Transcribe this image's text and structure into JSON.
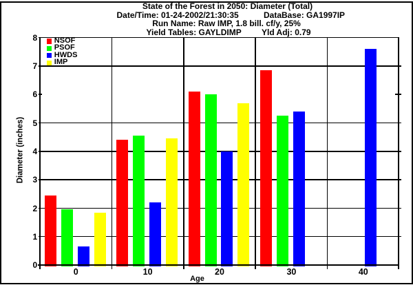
{
  "header": {
    "line1": "State of the Forest in 2050: Diameter (Total)",
    "line2_left": "Date/Time: 01-24-2002/21:30:35",
    "line2_right": "DataBase: GA1997IP",
    "line3": "Run Name: Raw IMP, 1.8 bill. cf/y, 25%",
    "line4_left": "Yield Tables: GAYLDIMP",
    "line4_right": "Yld Adj: 0.79"
  },
  "chart_data": {
    "type": "bar",
    "title": "State of the Forest in 2050: Diameter (Total)",
    "xlabel": "Age",
    "ylabel": "Diameter (inches)",
    "categories": [
      "0",
      "10",
      "20",
      "30",
      "40"
    ],
    "series": [
      {
        "name": "NSOF",
        "color": "#ff0000",
        "values": [
          2.45,
          4.4,
          6.1,
          6.85,
          null
        ]
      },
      {
        "name": "PSOF",
        "color": "#00ff00",
        "values": [
          1.95,
          4.55,
          6.0,
          5.25,
          null
        ]
      },
      {
        "name": "HWDS",
        "color": "#0000ff",
        "values": [
          0.65,
          2.2,
          4.0,
          5.4,
          7.6
        ]
      },
      {
        "name": "IMP",
        "color": "#ffff00",
        "values": [
          1.85,
          4.45,
          5.7,
          null,
          null
        ]
      }
    ],
    "ylim": [
      0,
      8
    ],
    "yticks": [
      0,
      1,
      2,
      3,
      4,
      5,
      6,
      7,
      8
    ],
    "grid_full_rows": [
      1,
      2,
      3,
      4,
      5,
      7
    ],
    "grid_tick_only_rows": [
      6
    ],
    "grid": "on",
    "legend_position": "top-left",
    "axis_color": "#000000",
    "background_color": "#ffffff"
  }
}
